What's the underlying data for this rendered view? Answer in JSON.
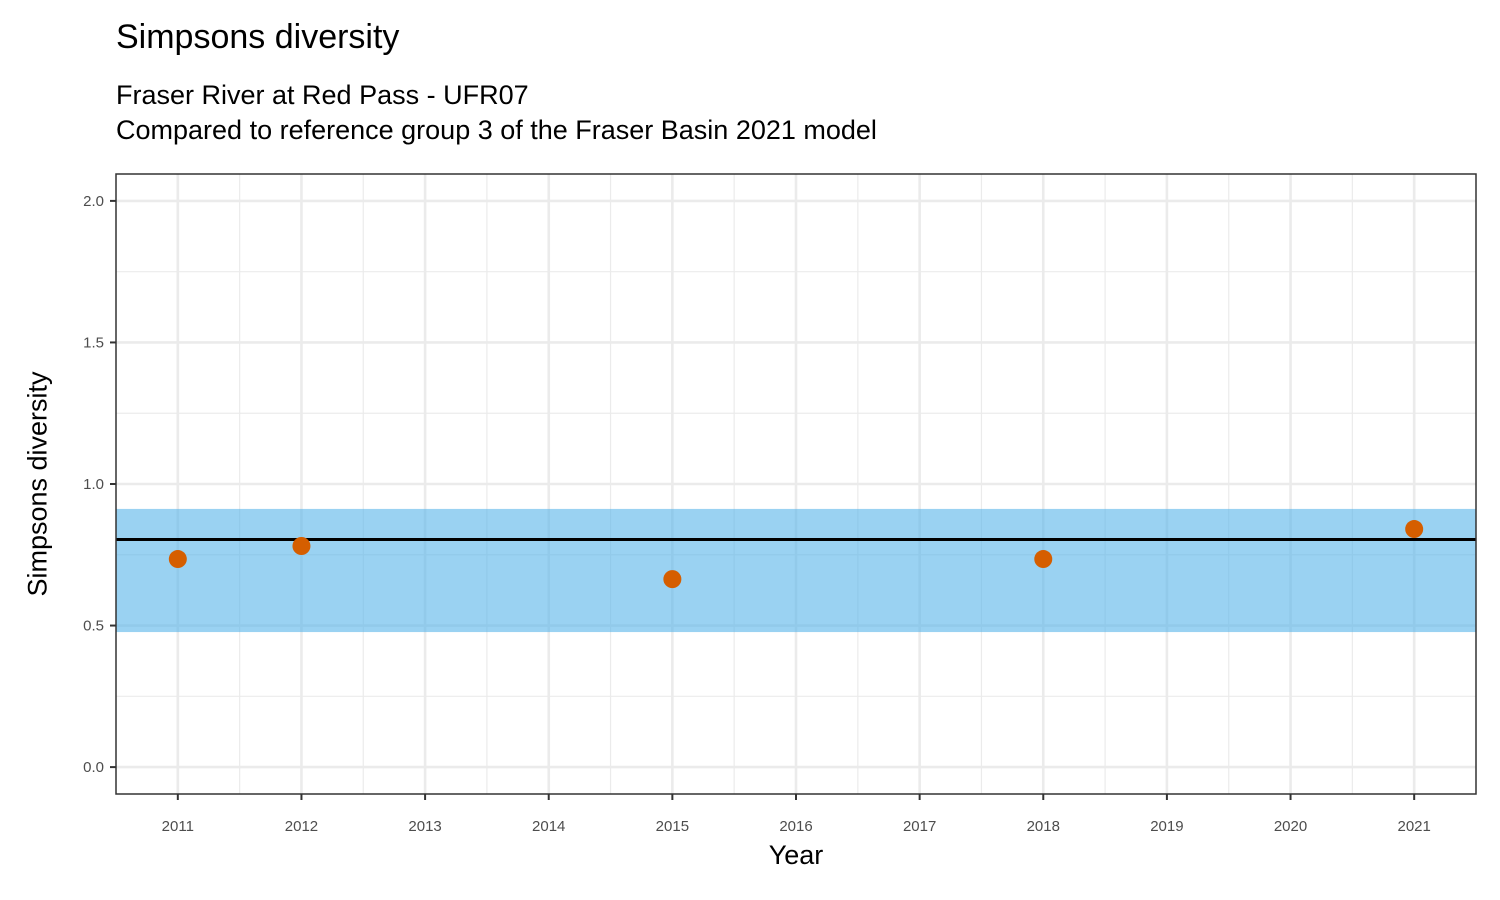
{
  "chart_data": {
    "type": "scatter",
    "title": "Simpsons diversity",
    "subtitle": [
      "Fraser River at Red Pass - UFR07",
      "Compared to reference group 3 of the Fraser Basin 2021 model"
    ],
    "xlabel": "Year",
    "ylabel": "Simpsons diversity",
    "xlim": [
      2010.5,
      2021.5
    ],
    "ylim": [
      -0.095,
      2.095
    ],
    "x_ticks": [
      "2011",
      "2012",
      "2013",
      "2014",
      "2015",
      "2016",
      "2017",
      "2018",
      "2019",
      "2020",
      "2021"
    ],
    "y_ticks": [
      "0.0",
      "0.5",
      "1.0",
      "1.5",
      "2.0"
    ],
    "grid": true,
    "reference_band": {
      "low": 0.477,
      "high": 0.912,
      "color": "#56B4E9"
    },
    "reference_line": {
      "value": 0.804,
      "color": "#000000"
    },
    "points": {
      "x": [
        2011,
        2012,
        2015,
        2018,
        2021
      ],
      "y": [
        0.735,
        0.781,
        0.664,
        0.735,
        0.841
      ],
      "color": "#D55E00"
    }
  }
}
